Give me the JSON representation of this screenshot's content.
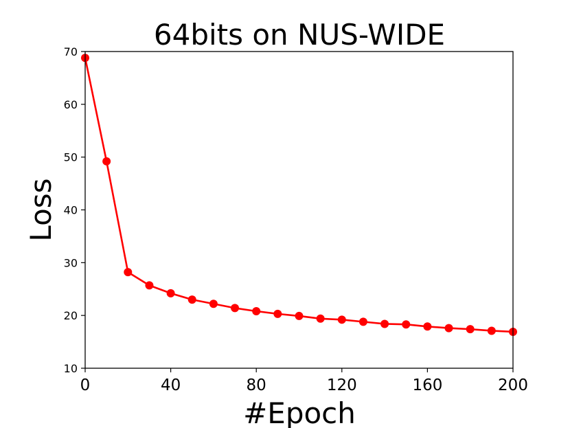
{
  "chart_data": {
    "type": "line",
    "title": "64bits on NUS-WIDE",
    "xlabel": "#Epoch",
    "ylabel": "Loss",
    "xlim": [
      0,
      200
    ],
    "ylim": [
      10,
      70
    ],
    "xticks": [
      0,
      40,
      80,
      120,
      160,
      200
    ],
    "yticks": [
      10,
      20,
      30,
      40,
      50,
      60,
      70
    ],
    "grid": false,
    "series": [
      {
        "color": "#ff0000",
        "marker": "circle",
        "x": [
          0,
          10,
          20,
          30,
          40,
          50,
          60,
          70,
          80,
          90,
          100,
          110,
          120,
          130,
          140,
          150,
          160,
          170,
          180,
          190,
          200
        ],
        "y": [
          68.8,
          49.2,
          28.2,
          25.7,
          24.2,
          23.0,
          22.2,
          21.4,
          20.8,
          20.3,
          19.9,
          19.4,
          19.2,
          18.8,
          18.4,
          18.3,
          17.9,
          17.6,
          17.4,
          17.1,
          16.9
        ]
      }
    ]
  }
}
